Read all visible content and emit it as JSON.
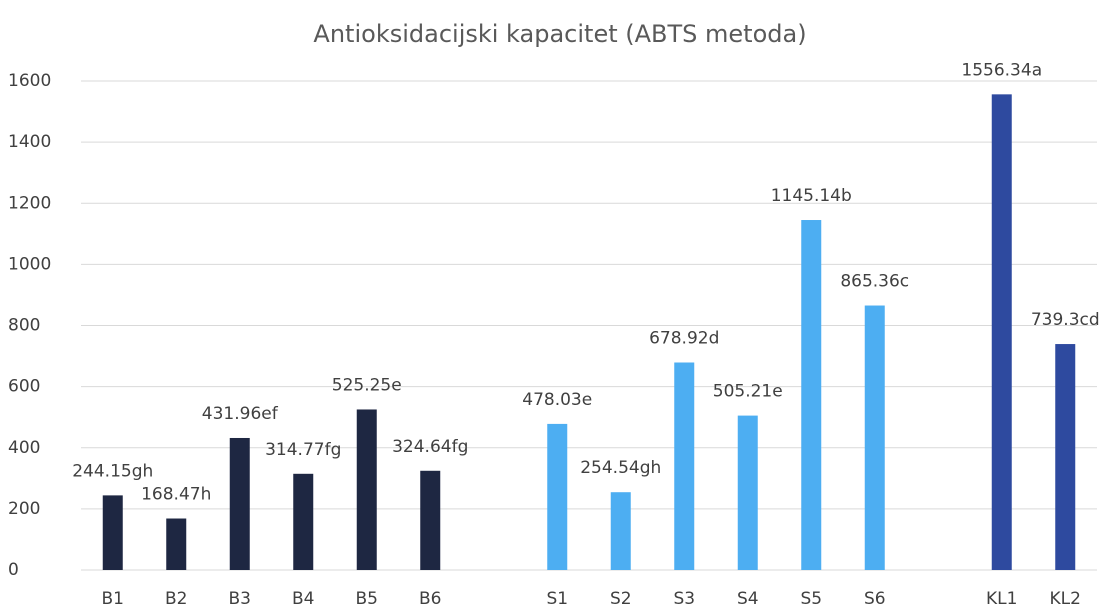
{
  "chart_data": {
    "type": "bar",
    "title": "Antioksidacijski kapacitet (ABTS metoda)",
    "categories": [
      "B1",
      "B2",
      "B3",
      "B4",
      "B5",
      "B6",
      null,
      "S1",
      "S2",
      "S3",
      "S4",
      "S5",
      "S6",
      null,
      "KL1",
      "KL2"
    ],
    "values": [
      244.15,
      168.47,
      431.96,
      314.77,
      525.25,
      324.64,
      null,
      478.03,
      254.54,
      678.92,
      505.21,
      1145.14,
      865.36,
      null,
      1556.34,
      739.3
    ],
    "value_labels": [
      "244.15gh",
      "168.47h",
      "431.96ef",
      "314.77fg",
      "525.25e",
      "324.64fg",
      null,
      "478.03e",
      "254.54gh",
      "678.92d",
      "505.21e",
      "1145.14b",
      "865.36c",
      null,
      "1556.34a",
      "739.3cd"
    ],
    "colors": [
      "#1e2742",
      "#1e2742",
      "#1e2742",
      "#1e2742",
      "#1e2742",
      "#1e2742",
      null,
      "#4daef2",
      "#4daef2",
      "#4daef2",
      "#4daef2",
      "#4daef2",
      "#4daef2",
      null,
      "#2e4a9f",
      "#2e4a9f"
    ],
    "ylim": [
      0,
      1600
    ],
    "yticks": [
      0,
      200,
      400,
      600,
      800,
      1000,
      1200,
      1400,
      1600
    ],
    "grid": true
  }
}
